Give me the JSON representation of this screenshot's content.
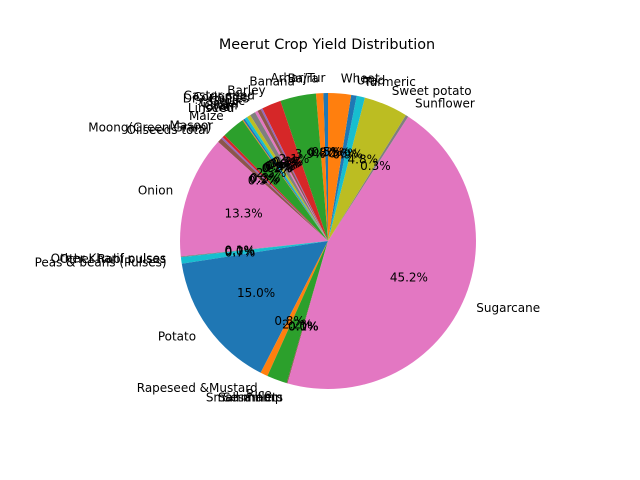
{
  "chart_data": {
    "type": "pie",
    "title": "Meerut Crop Yield Distribution",
    "colors": [
      "#1f77b4",
      "#ff7f0e",
      "#2ca02c",
      "#d62728",
      "#9467bd",
      "#8c564b",
      "#e377c2",
      "#7f7f7f",
      "#bcbd22",
      "#17becf"
    ],
    "slices": [
      {
        "label": "Arhar/Tur",
        "value": 0.5,
        "pct_text": "0.5%"
      },
      {
        "label": "Bajra",
        "value": 0.8,
        "pct_text": "0.8%"
      },
      {
        "label": "Banana",
        "value": 3.9,
        "pct_text": "3.9%"
      },
      {
        "label": "Barley",
        "value": 2.1,
        "pct_text": "2.1%"
      },
      {
        "label": "Castor seed",
        "value": 0.2,
        "pct_text": "0.2%"
      },
      {
        "label": "Coriander",
        "value": 0.4,
        "pct_text": "0.4%"
      },
      {
        "label": "Dry chillies",
        "value": 0.3,
        "pct_text": "0.3%"
      },
      {
        "label": "Garlic",
        "value": 0.6,
        "pct_text": "0.6%"
      },
      {
        "label": "Ginger",
        "value": 0.4,
        "pct_text": "0.4%"
      },
      {
        "label": "Gram",
        "value": 0.3,
        "pct_text": "0.3%"
      },
      {
        "label": "Jowar",
        "value": 0.2,
        "pct_text": "0.2%"
      },
      {
        "label": "Linseed",
        "value": 0.1,
        "pct_text": "0.1%"
      },
      {
        "label": "Maize",
        "value": 2.5,
        "pct_text": "2.5%"
      },
      {
        "label": "Masoor",
        "value": 0.3,
        "pct_text": "0.3%"
      },
      {
        "label": "Moong(Green Gram)",
        "value": 0.2,
        "pct_text": "0.2%"
      },
      {
        "label": "Oilseeds total",
        "value": 0.5,
        "pct_text": "0.5%"
      },
      {
        "label": "Onion",
        "value": 13.3,
        "pct_text": "13.3%"
      },
      {
        "label": "Other Kharif pulses",
        "value": 0.1,
        "pct_text": "0.1%"
      },
      {
        "label": "Other Rabi pulses",
        "value": 0.0,
        "pct_text": "0.0%"
      },
      {
        "label": "Peas & beans (Pulses)",
        "value": 0.7,
        "pct_text": "0.7%"
      },
      {
        "label": "Potato",
        "value": 15.0,
        "pct_text": "15.0%"
      },
      {
        "label": "Rapeseed &Mustard",
        "value": 0.8,
        "pct_text": "0.8%"
      },
      {
        "label": "Rice",
        "value": 2.2,
        "pct_text": "2.2%"
      },
      {
        "label": "Sannhamp",
        "value": 0.0,
        "pct_text": "0.0%"
      },
      {
        "label": "Sesamum",
        "value": 0.0,
        "pct_text": "0.0%"
      },
      {
        "label": "Small millets",
        "value": 0.1,
        "pct_text": "0.1%"
      },
      {
        "label": "Sugarcane",
        "value": 45.2,
        "pct_text": "45.2%"
      },
      {
        "label": "Sunflower",
        "value": 0.3,
        "pct_text": "0.3%"
      },
      {
        "label": "Sweet potato",
        "value": 4.8,
        "pct_text": "4.8%"
      },
      {
        "label": "Turmeric",
        "value": 0.9,
        "pct_text": "0.9%"
      },
      {
        "label": "Urad",
        "value": 0.6,
        "pct_text": "0.6%"
      },
      {
        "label": "Wheat",
        "value": 2.5,
        "pct_text": "2.5%"
      }
    ]
  }
}
